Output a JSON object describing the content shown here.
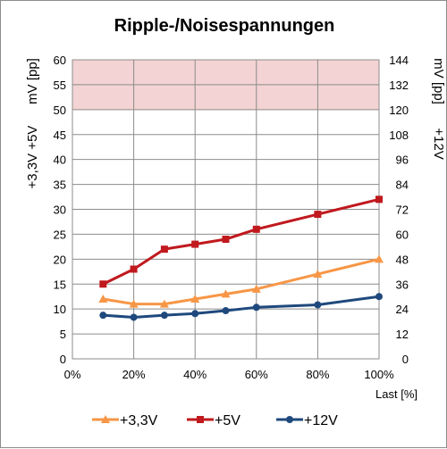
{
  "chart_data": {
    "type": "line",
    "title": "Ripple-/Noisespannungen",
    "xlabel": "Last [%]",
    "ylabel_left_top": "mV [pp]",
    "ylabel_left_bottom": "+3,3V +5V",
    "ylabel_right_top": "mV [pp]",
    "ylabel_right_bottom": "+12V",
    "x": [
      10,
      20,
      30,
      40,
      50,
      60,
      80,
      100
    ],
    "xlim": [
      0,
      100
    ],
    "x_ticks": [
      "0%",
      "20%",
      "40%",
      "60%",
      "80%",
      "100%"
    ],
    "ylim_left": [
      0,
      60
    ],
    "y_ticks_left": [
      "0",
      "5",
      "10",
      "15",
      "20",
      "25",
      "30",
      "35",
      "40",
      "45",
      "50",
      "55",
      "60"
    ],
    "ylim_right": [
      0,
      144
    ],
    "y_ticks_right": [
      "0",
      "12",
      "24",
      "36",
      "48",
      "60",
      "72",
      "84",
      "96",
      "108",
      "120",
      "132",
      "144"
    ],
    "limit_band_left": [
      50,
      60
    ],
    "limit_band_color": "#f3d3d3",
    "grid": true,
    "legend_position": "bottom",
    "series": [
      {
        "name": "+3,3V",
        "axis": "left",
        "color": "#f79646",
        "marker": "triangle",
        "values": [
          12,
          11,
          11,
          12,
          13,
          14,
          17,
          20
        ]
      },
      {
        "name": "+5V",
        "axis": "left",
        "color": "#c0191e",
        "marker": "square",
        "values": [
          15,
          18,
          22,
          23,
          24,
          26,
          29,
          32
        ]
      },
      {
        "name": "+12V",
        "axis": "right",
        "color": "#1f497d",
        "marker": "circle",
        "values": [
          21,
          20,
          21,
          21.8,
          23.2,
          24.8,
          26,
          30
        ]
      }
    ]
  }
}
